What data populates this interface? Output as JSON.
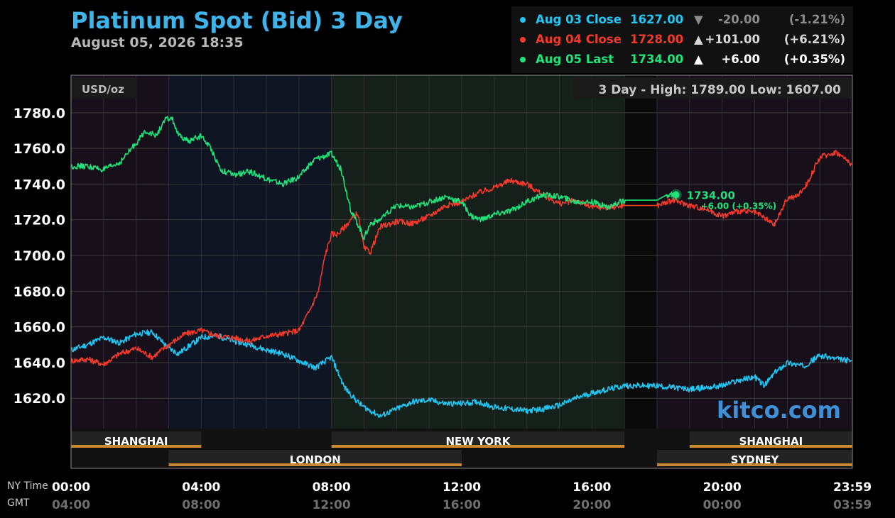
{
  "header": {
    "title": "Platinum Spot (Bid) 3 Day",
    "timestamp": "August 05, 2026 18:35"
  },
  "legend": [
    {
      "label": "Aug 03 Close",
      "value": "1627.00",
      "arrow": "▼",
      "change": "-20.00",
      "pct": "(-1.21%)",
      "color": "#22c6f2",
      "change_color": "#8c8c8c"
    },
    {
      "label": "Aug 04 Close",
      "value": "1728.00",
      "arrow": "▲",
      "change": "+101.00",
      "pct": "(+6.21%)",
      "color": "#f2392c",
      "change_color": "#d8d8d8"
    },
    {
      "label": "Aug 05 Last",
      "value": "1734.00",
      "arrow": "▲",
      "change": "+6.00",
      "pct": "(+0.35%)",
      "color": "#1fe27a",
      "change_color": "#ffffff"
    }
  ],
  "units_label": "USD/oz",
  "range_label": "3 Day - High: 1789.00  Low: 1607.00",
  "brand": "kitco.com",
  "last_marker": {
    "value": "1734.00",
    "change": "+6.00 (+0.35%)",
    "hour": 18.58
  },
  "sessions": {
    "row1": [
      {
        "name": "SHANGHAI",
        "start": 0,
        "end": 4
      },
      {
        "name": "NEW YORK",
        "start": 8,
        "end": 17
      },
      {
        "name": "SHANGHAI",
        "start": 19,
        "end": 24
      }
    ],
    "row2": [
      {
        "name": "LONDON",
        "start": 3,
        "end": 12
      },
      {
        "name": "SYDNEY",
        "start": 18,
        "end": 24
      }
    ]
  },
  "axis": {
    "ny_label": "NY Time",
    "gmt_label": "GMT",
    "x_ticks": [
      {
        "hour": 0,
        "ny": "00:00",
        "gmt": "04:00"
      },
      {
        "hour": 4,
        "ny": "04:00",
        "gmt": "08:00"
      },
      {
        "hour": 8,
        "ny": "08:00",
        "gmt": "12:00"
      },
      {
        "hour": 12,
        "ny": "12:00",
        "gmt": "16:00"
      },
      {
        "hour": 16,
        "ny": "16:00",
        "gmt": "20:00"
      },
      {
        "hour": 20,
        "ny": "20:00",
        "gmt": "00:00"
      },
      {
        "hour": 24,
        "ny": "23:59",
        "gmt": "03:59"
      }
    ],
    "y_ticks": [
      "1620.0",
      "1640.0",
      "1660.0",
      "1680.0",
      "1700.0",
      "1720.0",
      "1740.0",
      "1760.0",
      "1780.0"
    ]
  },
  "chart_data": {
    "type": "line",
    "title": "Platinum Spot (Bid) 3 Day",
    "xlabel": "NY Time",
    "ylabel": "USD/oz",
    "xlim": [
      0,
      24
    ],
    "ylim": [
      1603,
      1801
    ],
    "grid": true,
    "legend_position": "top-right",
    "series": [
      {
        "name": "Aug 03",
        "color": "#22c6f2",
        "x": [
          0,
          0.5,
          1,
          1.5,
          2,
          2.5,
          3,
          3.3,
          3.6,
          4,
          4.5,
          5,
          5.5,
          6,
          6.5,
          7,
          7.5,
          8,
          8.4,
          8.8,
          9,
          9.5,
          10,
          10.5,
          11,
          11.5,
          12,
          12.5,
          13,
          13.5,
          14,
          14.5,
          15,
          15.5,
          16,
          16.5,
          17,
          17.5,
          18,
          18.5,
          19,
          19.5,
          20,
          20.5,
          21,
          21.3,
          21.6,
          22,
          22.5,
          23,
          23.5,
          24
        ],
        "values": [
          1647,
          1650,
          1654,
          1651,
          1656,
          1657,
          1648,
          1645,
          1649,
          1654,
          1655,
          1652,
          1650,
          1647,
          1645,
          1641,
          1637,
          1643,
          1626,
          1618,
          1615,
          1610,
          1614,
          1618,
          1619,
          1617,
          1617,
          1618,
          1615,
          1614,
          1613,
          1614,
          1616,
          1620,
          1623,
          1625,
          1627,
          1627,
          1627,
          1626,
          1625,
          1626,
          1627,
          1630,
          1632,
          1627,
          1634,
          1640,
          1638,
          1644,
          1642,
          1641
        ]
      },
      {
        "name": "Aug 04",
        "color": "#f2392c",
        "x": [
          0,
          0.5,
          1,
          1.5,
          2,
          2.5,
          3,
          3.5,
          4,
          4.5,
          5,
          5.5,
          6,
          6.5,
          7,
          7.3,
          7.6,
          7.8,
          8,
          8.2,
          8.5,
          8.8,
          9,
          9.2,
          9.5,
          10,
          10.5,
          11,
          11.5,
          12,
          12.5,
          13,
          13.5,
          14,
          14.5,
          15,
          15.5,
          16,
          16.5,
          17,
          17.5,
          18,
          18.5,
          19,
          19.5,
          20,
          20.5,
          21,
          21.3,
          21.6,
          22,
          22.3,
          22.6,
          23,
          23.5,
          24
        ],
        "values": [
          1641,
          1642,
          1639,
          1645,
          1648,
          1643,
          1650,
          1656,
          1658,
          1655,
          1654,
          1652,
          1655,
          1656,
          1658,
          1668,
          1680,
          1700,
          1712,
          1712,
          1718,
          1724,
          1704,
          1702,
          1716,
          1719,
          1718,
          1722,
          1728,
          1730,
          1735,
          1738,
          1742,
          1740,
          1734,
          1729,
          1731,
          1727,
          1727,
          1728,
          1728,
          1728,
          1731,
          1728,
          1726,
          1722,
          1725,
          1724,
          1721,
          1717,
          1732,
          1733,
          1740,
          1755,
          1758,
          1751
        ]
      },
      {
        "name": "Aug 05",
        "color": "#1fe27a",
        "x": [
          0,
          0.5,
          1,
          1.5,
          2,
          2.3,
          2.6,
          2.9,
          3.1,
          3.3,
          3.6,
          4,
          4.3,
          4.6,
          5,
          5.5,
          6,
          6.5,
          7,
          7.5,
          8,
          8.3,
          8.6,
          8.8,
          9,
          9.2,
          9.5,
          10,
          10.5,
          11,
          11.5,
          12,
          12.3,
          12.6,
          13,
          13.5,
          14,
          14.5,
          15,
          15.5,
          16,
          16.5,
          17,
          17.5,
          18,
          18.3,
          18.58
        ],
        "values": [
          1750,
          1750,
          1748,
          1752,
          1763,
          1770,
          1767,
          1776,
          1777,
          1767,
          1764,
          1767,
          1760,
          1748,
          1745,
          1747,
          1743,
          1740,
          1744,
          1754,
          1757,
          1748,
          1725,
          1718,
          1710,
          1718,
          1720,
          1728,
          1727,
          1730,
          1733,
          1730,
          1722,
          1720,
          1723,
          1725,
          1730,
          1734,
          1733,
          1730,
          1730,
          1727,
          1731,
          1731,
          1731,
          1734,
          1734
        ]
      }
    ]
  }
}
